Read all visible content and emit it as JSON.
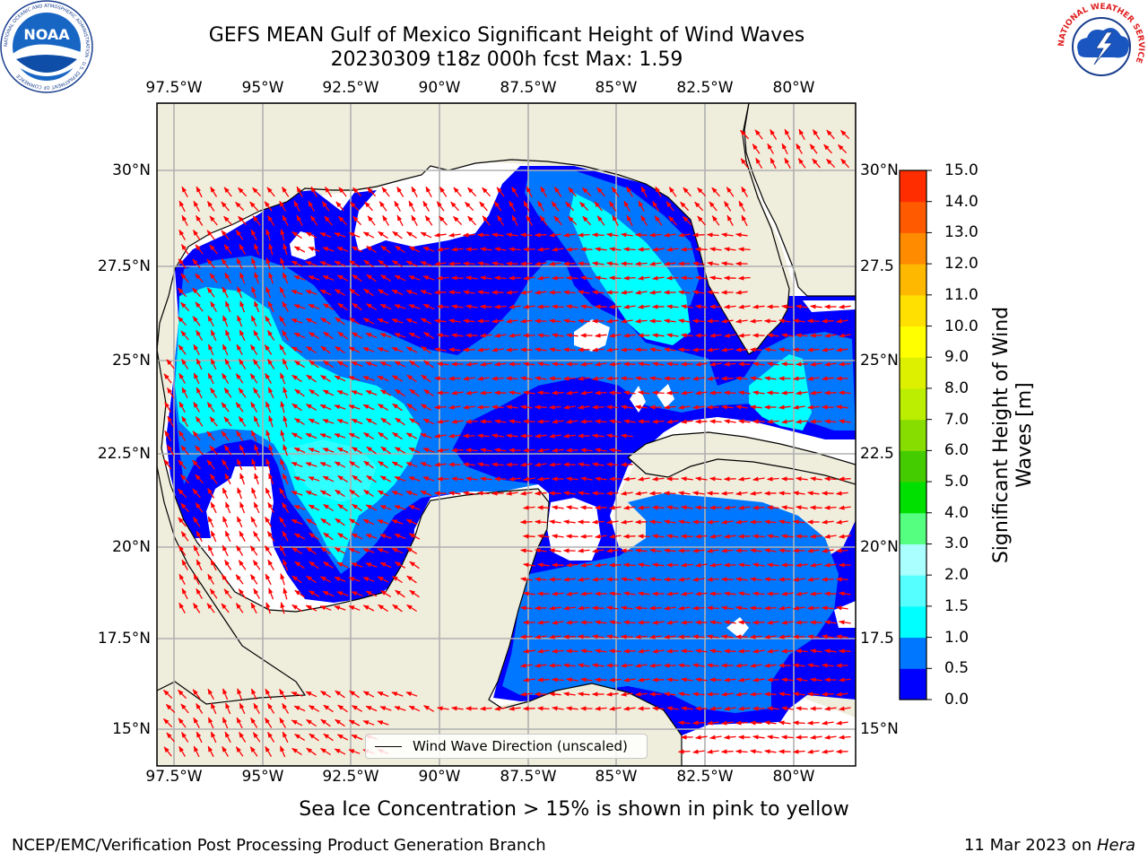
{
  "title": {
    "line1": "GEFS MEAN Gulf of Mexico Significant Height of Wind Waves",
    "line2": "20230309 t18z 000h fcst   Max: 1.59"
  },
  "map": {
    "lon_ticks": [
      "97.5°W",
      "95°W",
      "92.5°W",
      "90°W",
      "87.5°W",
      "85°W",
      "82.5°W",
      "80°W"
    ],
    "lat_ticks_left": [
      "30°N",
      "27.5°N",
      "25°N",
      "22.5°N",
      "20°N",
      "17.5°N",
      "15°N"
    ],
    "lat_ticks_right": [
      "30°N",
      "27.5",
      "25°N",
      "22.5",
      "20°N",
      "17.5",
      "15°N"
    ],
    "lon_range": [
      -98,
      -78.2
    ],
    "lat_range": [
      14,
      31.8
    ],
    "land_color": "#efeddc",
    "vector_color": "#ff0000",
    "legend_label": "Wind Wave Direction (unscaled)"
  },
  "colorbar": {
    "label": "Significant Height of Wind Waves [m]",
    "label_line1": "Significant Height of Wind",
    "label_line2": "Waves [m]",
    "ticks": [
      "0.0",
      "0.5",
      "1.0",
      "1.5",
      "2.0",
      "3.0",
      "4.0",
      "5.0",
      "6.0",
      "7.0",
      "8.0",
      "9.0",
      "10.0",
      "11.0",
      "12.0",
      "13.0",
      "14.0",
      "15.0"
    ],
    "colors": [
      "#0000ff",
      "#0077ff",
      "#00ffff",
      "#55ffff",
      "#aaffff",
      "#55ff7f",
      "#00e000",
      "#44cc00",
      "#88dd00",
      "#bbee00",
      "#ddf000",
      "#ffff00",
      "#ffe000",
      "#ffb800",
      "#ff8c00",
      "#ff5a00",
      "#ff2d00"
    ]
  },
  "footnote": "Sea Ice Concentration > 15% is shown in pink to yellow",
  "credit": "NCEP/EMC/Verification Post Processing Product Generation Branch",
  "date": "11 Mar 2023 on ",
  "date_host": "Hera",
  "logos": {
    "noaa_text": "NOAA",
    "noaa_ring": "NATIONAL OCEANIC AND ATMOSPHERIC ADMINISTRATION · U.S. DEPARTMENT OF COMMERCE",
    "nws_ring": "NATIONAL WEATHER SERVICE"
  }
}
